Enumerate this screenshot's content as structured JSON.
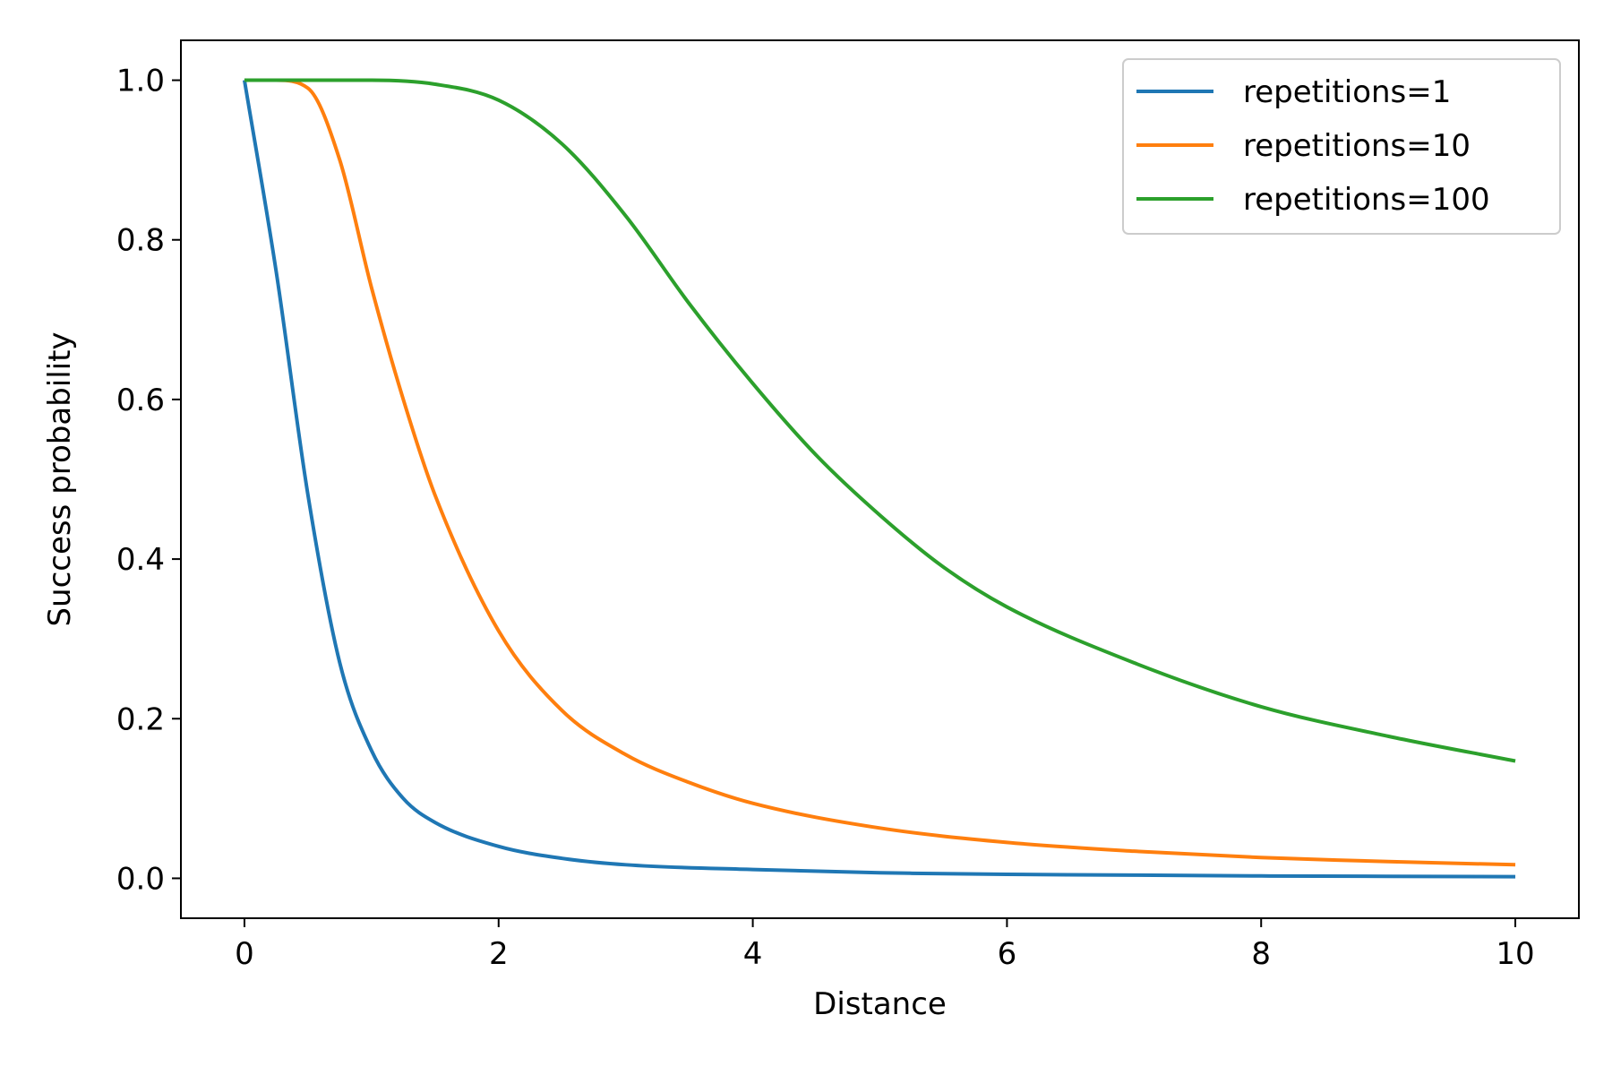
{
  "chart_data": {
    "type": "line",
    "title": "",
    "xlabel": "Distance",
    "ylabel": "Success probability",
    "xlim": [
      -0.5,
      10.5
    ],
    "ylim": [
      -0.05,
      1.05
    ],
    "xticks": [
      0,
      2,
      4,
      6,
      8,
      10
    ],
    "xtick_labels": [
      "0",
      "2",
      "4",
      "6",
      "8",
      "10"
    ],
    "yticks": [
      0.0,
      0.2,
      0.4,
      0.6,
      0.8,
      1.0
    ],
    "ytick_labels": [
      "0.0",
      "0.2",
      "0.4",
      "0.6",
      "0.8",
      "1.0"
    ],
    "grid": false,
    "legend_position": "top-right",
    "series": [
      {
        "name": "repetitions=1",
        "color": "#1f77b4",
        "x": [
          0,
          0.25,
          0.5,
          0.75,
          1.0,
          1.25,
          1.5,
          2.0,
          2.5,
          3.0,
          4.0,
          5.0,
          6.0,
          7.0,
          8.0,
          9.0,
          10.0
        ],
        "y": [
          1.0,
          0.76,
          0.48,
          0.27,
          0.16,
          0.1,
          0.07,
          0.04,
          0.025,
          0.017,
          0.011,
          0.007,
          0.005,
          0.004,
          0.003,
          0.0025,
          0.002
        ]
      },
      {
        "name": "repetitions=10",
        "color": "#ff7f0e",
        "x": [
          0,
          0.25,
          0.5,
          0.75,
          1.0,
          1.25,
          1.5,
          2.0,
          2.5,
          3.0,
          3.5,
          4.0,
          5.0,
          6.0,
          7.0,
          8.0,
          9.0,
          10.0
        ],
        "y": [
          1.0,
          1.0,
          0.99,
          0.9,
          0.74,
          0.6,
          0.48,
          0.31,
          0.21,
          0.155,
          0.12,
          0.094,
          0.063,
          0.045,
          0.034,
          0.026,
          0.021,
          0.017
        ]
      },
      {
        "name": "repetitions=100",
        "color": "#2ca02c",
        "x": [
          0,
          0.5,
          1.0,
          1.5,
          2.0,
          2.5,
          3.0,
          3.5,
          4.0,
          4.5,
          5.0,
          5.5,
          6.0,
          7.0,
          8.0,
          9.0,
          10.0
        ],
        "y": [
          1.0,
          1.0,
          1.0,
          0.995,
          0.975,
          0.92,
          0.83,
          0.72,
          0.62,
          0.53,
          0.455,
          0.39,
          0.34,
          0.27,
          0.215,
          0.178,
          0.147
        ]
      }
    ]
  }
}
